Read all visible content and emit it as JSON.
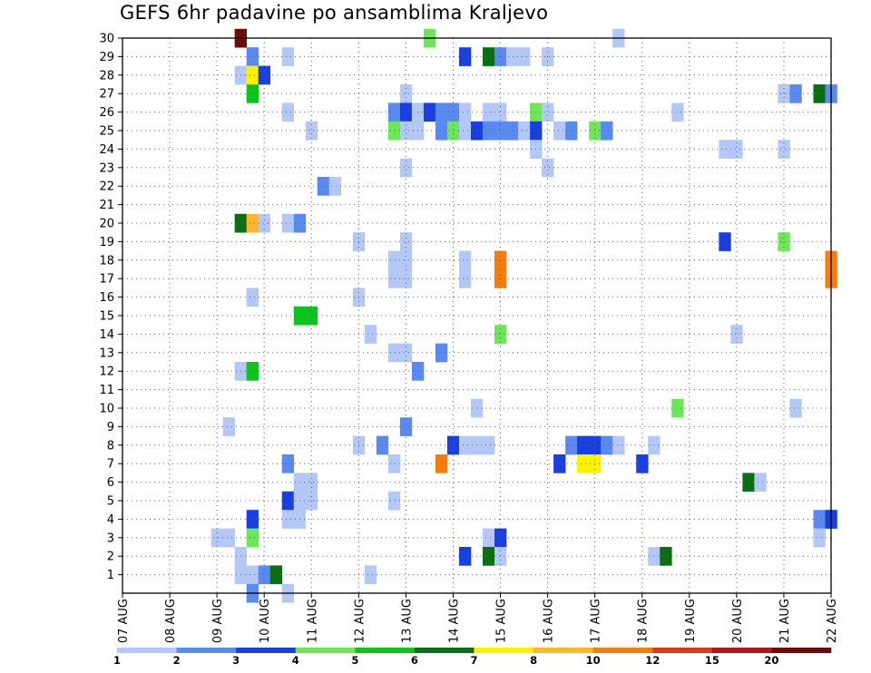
{
  "chart_data": {
    "type": "heatmap",
    "title": "GEFS 6hr padavine po ansamblima Kraljevo",
    "xlabel": "",
    "ylabel": "",
    "x_ticks": [
      "07 AUG",
      "08 AUG",
      "09 AUG",
      "10 AUG",
      "11 AUG",
      "12 AUG",
      "13 AUG",
      "14 AUG",
      "15 AUG",
      "16 AUG",
      "17 AUG",
      "18 AUG",
      "19 AUG",
      "20 AUG",
      "21 AUG",
      "22 AUG"
    ],
    "y_ticks": [
      "1",
      "2",
      "3",
      "4",
      "5",
      "6",
      "7",
      "8",
      "9",
      "10",
      "11",
      "12",
      "13",
      "14",
      "15",
      "16",
      "17",
      "18",
      "19",
      "20",
      "21",
      "22",
      "23",
      "24",
      "25",
      "26",
      "27",
      "28",
      "29",
      "30"
    ],
    "x_range": [
      0,
      15
    ],
    "y_range": [
      0,
      30
    ],
    "time_step": "6hr",
    "grid": true,
    "legend_position": "bottom",
    "legend": {
      "labels": [
        "1",
        "2",
        "3",
        "4",
        "5",
        "6",
        "7",
        "8",
        "10",
        "12",
        "15",
        "20"
      ],
      "colors": [
        "#b4c8f8",
        "#5a8af0",
        "#1a3fe0",
        "#6ee65a",
        "#0ec41a",
        "#0a6e12",
        "#fff200",
        "#ffb42a",
        "#f57e0a",
        "#dc3a14",
        "#b4141a",
        "#6e0a0a"
      ]
    },
    "cells": [
      {
        "x": 2.5,
        "y": 30,
        "c": 11
      },
      {
        "x": 6.5,
        "y": 30,
        "c": 3
      },
      {
        "x": 10.5,
        "y": 30,
        "c": 0
      },
      {
        "x": 2.75,
        "y": 29,
        "c": 1
      },
      {
        "x": 3.5,
        "y": 29,
        "c": 0
      },
      {
        "x": 7.25,
        "y": 29,
        "c": 2
      },
      {
        "x": 7.75,
        "y": 29,
        "c": 5
      },
      {
        "x": 8.0,
        "y": 29,
        "c": 1
      },
      {
        "x": 8.25,
        "y": 29,
        "c": 0
      },
      {
        "x": 8.5,
        "y": 29,
        "c": 0
      },
      {
        "x": 9.0,
        "y": 29,
        "c": 0
      },
      {
        "x": 2.5,
        "y": 28,
        "c": 0
      },
      {
        "x": 2.75,
        "y": 28,
        "c": 6
      },
      {
        "x": 3.0,
        "y": 28,
        "c": 2
      },
      {
        "x": 2.75,
        "y": 27,
        "c": 4
      },
      {
        "x": 6.0,
        "y": 27,
        "c": 0
      },
      {
        "x": 14.0,
        "y": 27,
        "c": 0
      },
      {
        "x": 14.25,
        "y": 27,
        "c": 1
      },
      {
        "x": 14.75,
        "y": 27,
        "c": 5
      },
      {
        "x": 15.0,
        "y": 27,
        "c": 1
      },
      {
        "x": 3.5,
        "y": 26,
        "c": 0
      },
      {
        "x": 5.75,
        "y": 26,
        "c": 1
      },
      {
        "x": 6.0,
        "y": 26,
        "c": 2
      },
      {
        "x": 6.25,
        "y": 26,
        "c": 0
      },
      {
        "x": 6.5,
        "y": 26,
        "c": 2
      },
      {
        "x": 6.75,
        "y": 26,
        "c": 1
      },
      {
        "x": 7.0,
        "y": 26,
        "c": 1
      },
      {
        "x": 7.25,
        "y": 26,
        "c": 0
      },
      {
        "x": 7.75,
        "y": 26,
        "c": 0
      },
      {
        "x": 8.0,
        "y": 26,
        "c": 0
      },
      {
        "x": 8.75,
        "y": 26,
        "c": 3
      },
      {
        "x": 9.0,
        "y": 26,
        "c": 0
      },
      {
        "x": 11.75,
        "y": 26,
        "c": 0
      },
      {
        "x": 4.0,
        "y": 25,
        "c": 0
      },
      {
        "x": 5.75,
        "y": 25,
        "c": 3
      },
      {
        "x": 6.0,
        "y": 25,
        "c": 0
      },
      {
        "x": 6.25,
        "y": 25,
        "c": 0
      },
      {
        "x": 6.75,
        "y": 25,
        "c": 1
      },
      {
        "x": 7.0,
        "y": 25,
        "c": 3
      },
      {
        "x": 7.25,
        "y": 25,
        "c": 0
      },
      {
        "x": 7.5,
        "y": 25,
        "c": 2
      },
      {
        "x": 7.75,
        "y": 25,
        "c": 1
      },
      {
        "x": 8.0,
        "y": 25,
        "c": 1
      },
      {
        "x": 8.25,
        "y": 25,
        "c": 1
      },
      {
        "x": 8.5,
        "y": 25,
        "c": 0
      },
      {
        "x": 8.75,
        "y": 25,
        "c": 2
      },
      {
        "x": 9.25,
        "y": 25,
        "c": 0
      },
      {
        "x": 9.5,
        "y": 25,
        "c": 1
      },
      {
        "x": 10.0,
        "y": 25,
        "c": 3
      },
      {
        "x": 10.25,
        "y": 25,
        "c": 1
      },
      {
        "x": 8.75,
        "y": 24,
        "c": 0
      },
      {
        "x": 12.75,
        "y": 24,
        "c": 0
      },
      {
        "x": 13.0,
        "y": 24,
        "c": 0
      },
      {
        "x": 14.0,
        "y": 24,
        "c": 0
      },
      {
        "x": 6.0,
        "y": 23,
        "c": 0
      },
      {
        "x": 9.0,
        "y": 23,
        "c": 0
      },
      {
        "x": 4.25,
        "y": 22,
        "c": 1
      },
      {
        "x": 4.5,
        "y": 22,
        "c": 0
      },
      {
        "x": 2.5,
        "y": 20,
        "c": 5
      },
      {
        "x": 2.75,
        "y": 20,
        "c": 7
      },
      {
        "x": 3.0,
        "y": 20,
        "c": 0
      },
      {
        "x": 3.5,
        "y": 20,
        "c": 0
      },
      {
        "x": 3.75,
        "y": 20,
        "c": 1
      },
      {
        "x": 5.0,
        "y": 19,
        "c": 0
      },
      {
        "x": 6.0,
        "y": 19,
        "c": 0
      },
      {
        "x": 12.75,
        "y": 19,
        "c": 2
      },
      {
        "x": 14.0,
        "y": 19,
        "c": 3
      },
      {
        "x": 5.75,
        "y": 18,
        "c": 0
      },
      {
        "x": 6.0,
        "y": 18,
        "c": 0
      },
      {
        "x": 7.25,
        "y": 18,
        "c": 0
      },
      {
        "x": 8.0,
        "y": 18,
        "c": 8
      },
      {
        "x": 15.0,
        "y": 18,
        "c": 8
      },
      {
        "x": 5.75,
        "y": 17,
        "c": 0
      },
      {
        "x": 6.0,
        "y": 17,
        "c": 0
      },
      {
        "x": 7.25,
        "y": 17,
        "c": 0
      },
      {
        "x": 8.0,
        "y": 17,
        "c": 8
      },
      {
        "x": 15.0,
        "y": 17,
        "c": 8
      },
      {
        "x": 2.75,
        "y": 16,
        "c": 0
      },
      {
        "x": 5.0,
        "y": 16,
        "c": 0
      },
      {
        "x": 3.75,
        "y": 15,
        "c": 4
      },
      {
        "x": 4.0,
        "y": 15,
        "c": 4
      },
      {
        "x": 5.25,
        "y": 14,
        "c": 0
      },
      {
        "x": 8.0,
        "y": 14,
        "c": 3
      },
      {
        "x": 13.0,
        "y": 14,
        "c": 0
      },
      {
        "x": 5.75,
        "y": 13,
        "c": 0
      },
      {
        "x": 6.0,
        "y": 13,
        "c": 0
      },
      {
        "x": 6.75,
        "y": 13,
        "c": 1
      },
      {
        "x": 2.5,
        "y": 12,
        "c": 0
      },
      {
        "x": 2.75,
        "y": 12,
        "c": 4
      },
      {
        "x": 6.25,
        "y": 12,
        "c": 1
      },
      {
        "x": 7.5,
        "y": 10,
        "c": 0
      },
      {
        "x": 11.75,
        "y": 10,
        "c": 3
      },
      {
        "x": 14.25,
        "y": 10,
        "c": 0
      },
      {
        "x": 2.25,
        "y": 9,
        "c": 0
      },
      {
        "x": 6.0,
        "y": 9,
        "c": 1
      },
      {
        "x": 5.0,
        "y": 8,
        "c": 0
      },
      {
        "x": 5.5,
        "y": 8,
        "c": 1
      },
      {
        "x": 7.0,
        "y": 8,
        "c": 2
      },
      {
        "x": 7.25,
        "y": 8,
        "c": 0
      },
      {
        "x": 7.5,
        "y": 8,
        "c": 0
      },
      {
        "x": 7.75,
        "y": 8,
        "c": 0
      },
      {
        "x": 9.5,
        "y": 8,
        "c": 1
      },
      {
        "x": 9.75,
        "y": 8,
        "c": 2
      },
      {
        "x": 10.0,
        "y": 8,
        "c": 2
      },
      {
        "x": 10.25,
        "y": 8,
        "c": 1
      },
      {
        "x": 10.5,
        "y": 8,
        "c": 0
      },
      {
        "x": 11.25,
        "y": 8,
        "c": 0
      },
      {
        "x": 3.5,
        "y": 7,
        "c": 1
      },
      {
        "x": 5.75,
        "y": 7,
        "c": 0
      },
      {
        "x": 6.75,
        "y": 7,
        "c": 8
      },
      {
        "x": 9.25,
        "y": 7,
        "c": 2
      },
      {
        "x": 9.75,
        "y": 7,
        "c": 6
      },
      {
        "x": 10.0,
        "y": 7,
        "c": 6
      },
      {
        "x": 11.0,
        "y": 7,
        "c": 2
      },
      {
        "x": 3.75,
        "y": 6,
        "c": 0
      },
      {
        "x": 4.0,
        "y": 6,
        "c": 0
      },
      {
        "x": 13.25,
        "y": 6,
        "c": 5
      },
      {
        "x": 13.5,
        "y": 6,
        "c": 0
      },
      {
        "x": 3.5,
        "y": 5,
        "c": 2
      },
      {
        "x": 3.75,
        "y": 5,
        "c": 0
      },
      {
        "x": 4.0,
        "y": 5,
        "c": 0
      },
      {
        "x": 5.75,
        "y": 5,
        "c": 0
      },
      {
        "x": 2.75,
        "y": 4,
        "c": 2
      },
      {
        "x": 3.5,
        "y": 4,
        "c": 0
      },
      {
        "x": 3.75,
        "y": 4,
        "c": 0
      },
      {
        "x": 14.75,
        "y": 4,
        "c": 1
      },
      {
        "x": 15.0,
        "y": 4,
        "c": 2
      },
      {
        "x": 2.0,
        "y": 3,
        "c": 0
      },
      {
        "x": 2.25,
        "y": 3,
        "c": 0
      },
      {
        "x": 2.75,
        "y": 3,
        "c": 3
      },
      {
        "x": 7.75,
        "y": 3,
        "c": 0
      },
      {
        "x": 8.0,
        "y": 3,
        "c": 2
      },
      {
        "x": 14.75,
        "y": 3,
        "c": 0
      },
      {
        "x": 2.5,
        "y": 2,
        "c": 0
      },
      {
        "x": 7.25,
        "y": 2,
        "c": 2
      },
      {
        "x": 7.75,
        "y": 2,
        "c": 5
      },
      {
        "x": 8.0,
        "y": 2,
        "c": 0
      },
      {
        "x": 11.25,
        "y": 2,
        "c": 0
      },
      {
        "x": 11.5,
        "y": 2,
        "c": 5
      },
      {
        "x": 2.5,
        "y": 1,
        "c": 0
      },
      {
        "x": 2.75,
        "y": 1,
        "c": 0
      },
      {
        "x": 3.0,
        "y": 1,
        "c": 1
      },
      {
        "x": 3.25,
        "y": 1,
        "c": 5
      },
      {
        "x": 5.25,
        "y": 1,
        "c": 0
      },
      {
        "x": 2.75,
        "y": 0,
        "c": 1
      },
      {
        "x": 3.5,
        "y": 0,
        "c": 0
      }
    ]
  }
}
